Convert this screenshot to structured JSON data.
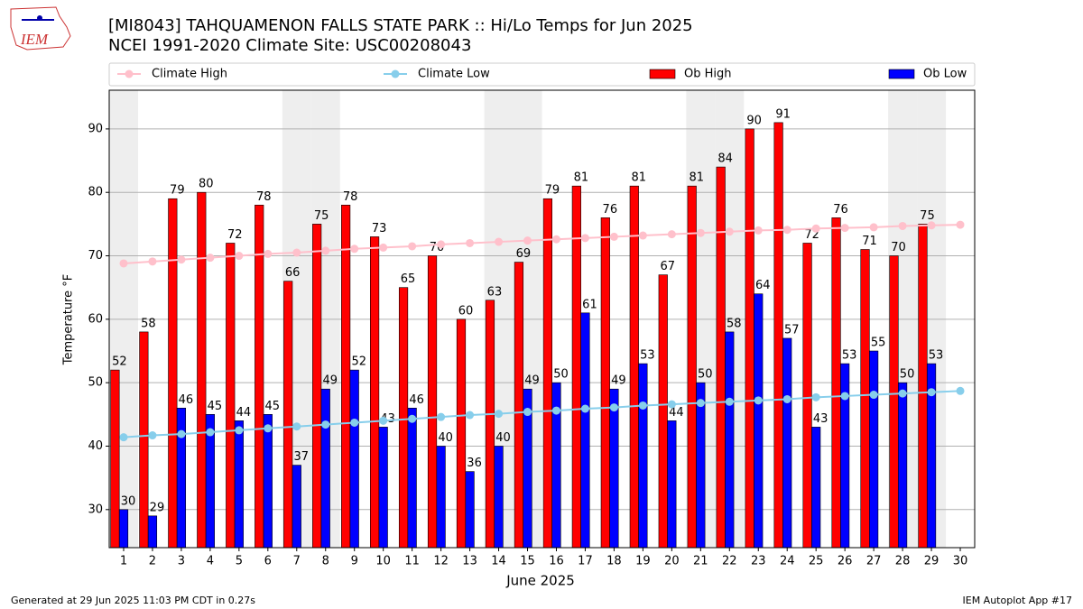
{
  "chart_data": {
    "type": "bar",
    "title": "[MI8043] TAHQUAMENON FALLS STATE PARK :: Hi/Lo Temps for Jun 2025",
    "subtitle": "NCEI 1991-2020 Climate Site: USC00208043",
    "x_label": "June 2025",
    "y_label": "Temperature °F",
    "logo": "IEM",
    "footer_left": "Generated at 29 Jun 2025 11:03 PM CDT in 0.27s",
    "footer_right": "IEM Autoplot App #17",
    "x": [
      1,
      2,
      3,
      4,
      5,
      6,
      7,
      8,
      9,
      10,
      11,
      12,
      13,
      14,
      15,
      16,
      17,
      18,
      19,
      20,
      21,
      22,
      23,
      24,
      25,
      26,
      27,
      28,
      29,
      30
    ],
    "xlim": [
      0.5,
      30.5
    ],
    "xticks": [
      1,
      2,
      3,
      4,
      5,
      6,
      7,
      8,
      9,
      10,
      11,
      12,
      13,
      14,
      15,
      16,
      17,
      18,
      19,
      20,
      21,
      22,
      23,
      24,
      25,
      26,
      27,
      28,
      29,
      30
    ],
    "ylim": [
      24,
      96.1
    ],
    "yticks": [
      30,
      40,
      50,
      60,
      70,
      80,
      90
    ],
    "grid": true,
    "highlight_days": [
      1,
      7,
      8,
      14,
      15,
      21,
      22,
      28,
      29
    ],
    "series": [
      {
        "name": "Climate High",
        "type": "line",
        "color": "#ffc0cb",
        "values": [
          68.8,
          69.1,
          69.4,
          69.7,
          70.0,
          70.3,
          70.5,
          70.8,
          71.1,
          71.3,
          71.5,
          71.8,
          72.0,
          72.2,
          72.4,
          72.6,
          72.8,
          73.0,
          73.2,
          73.4,
          73.6,
          73.8,
          74.0,
          74.1,
          74.3,
          74.4,
          74.5,
          74.7,
          74.8,
          74.9
        ]
      },
      {
        "name": "Climate Low",
        "type": "line",
        "color": "#87ceeb",
        "values": [
          41.4,
          41.7,
          41.9,
          42.2,
          42.5,
          42.8,
          43.1,
          43.4,
          43.7,
          44.0,
          44.3,
          44.6,
          44.9,
          45.1,
          45.4,
          45.6,
          45.9,
          46.1,
          46.4,
          46.6,
          46.8,
          47.0,
          47.2,
          47.4,
          47.7,
          47.9,
          48.1,
          48.3,
          48.5,
          48.7
        ]
      },
      {
        "name": "Ob High",
        "type": "bar",
        "color": "#ff0000",
        "values": [
          52,
          58,
          79,
          80,
          72,
          78,
          66,
          75,
          78,
          73,
          65,
          70,
          60,
          63,
          69,
          79,
          81,
          76,
          81,
          67,
          81,
          84,
          90,
          91,
          72,
          76,
          71,
          70,
          75,
          null
        ]
      },
      {
        "name": "Ob Low",
        "type": "bar",
        "color": "#0000ff",
        "values": [
          30,
          29,
          46,
          45,
          44,
          45,
          37,
          49,
          52,
          43,
          46,
          40,
          36,
          40,
          49,
          50,
          61,
          49,
          53,
          44,
          50,
          58,
          64,
          57,
          43,
          53,
          55,
          50,
          53,
          null
        ]
      }
    ]
  }
}
